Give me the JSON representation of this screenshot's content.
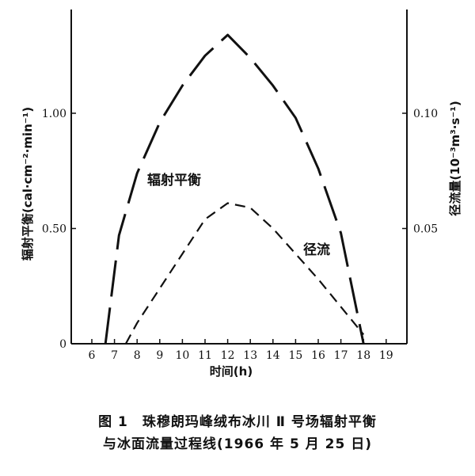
{
  "chart_data": {
    "type": "line",
    "title": "",
    "xlabel": "时间(h)",
    "ylabel_left": "辐射平衡(cal·cm⁻²·min⁻¹)",
    "ylabel_right": "径流量(10⁻³m³·s⁻¹)",
    "xlim": [
      5,
      20
    ],
    "x_ticks": [
      6,
      7,
      8,
      9,
      10,
      11,
      12,
      13,
      14,
      15,
      16,
      17,
      18,
      19
    ],
    "ylim_left": [
      0,
      1.5
    ],
    "y_ticks_left": [
      {
        "value": 0,
        "label": "0"
      },
      {
        "value": 0.5,
        "label": "0.50"
      },
      {
        "value": 1.0,
        "label": "1.00"
      }
    ],
    "ylim_right": [
      0,
      0.15
    ],
    "y_ticks_right": [
      {
        "value": 0.05,
        "label": "0.05"
      },
      {
        "value": 0.1,
        "label": "0.10"
      }
    ],
    "grid": false,
    "series": [
      {
        "name": "辐射平衡",
        "axis": "left",
        "style": "solid-long-dash",
        "x": [
          6.6,
          7.2,
          8.0,
          9.0,
          10.0,
          11.0,
          12.0,
          13.0,
          14.0,
          15.0,
          16.0,
          17.0,
          18.0
        ],
        "y": [
          0.0,
          0.47,
          0.74,
          0.96,
          1.12,
          1.25,
          1.34,
          1.24,
          1.12,
          0.98,
          0.76,
          0.48,
          0.0
        ]
      },
      {
        "name": "径流",
        "axis": "right",
        "style": "dashed",
        "x": [
          7.5,
          8.0,
          9.0,
          10.0,
          11.0,
          12.0,
          13.0,
          14.0,
          15.0,
          16.0,
          17.0,
          18.0
        ],
        "y": [
          0.0,
          0.009,
          0.024,
          0.039,
          0.054,
          0.061,
          0.059,
          0.05,
          0.039,
          0.028,
          0.016,
          0.004
        ]
      }
    ]
  },
  "caption": {
    "line1": "图 1　珠穆朗玛峰绒布冰川 Ⅱ 号场辐射平衡",
    "line2": "与冰面流量过程线(1966 年 5 月 25 日)"
  },
  "colors": {
    "ink": "#111111",
    "background": "#ffffff"
  }
}
